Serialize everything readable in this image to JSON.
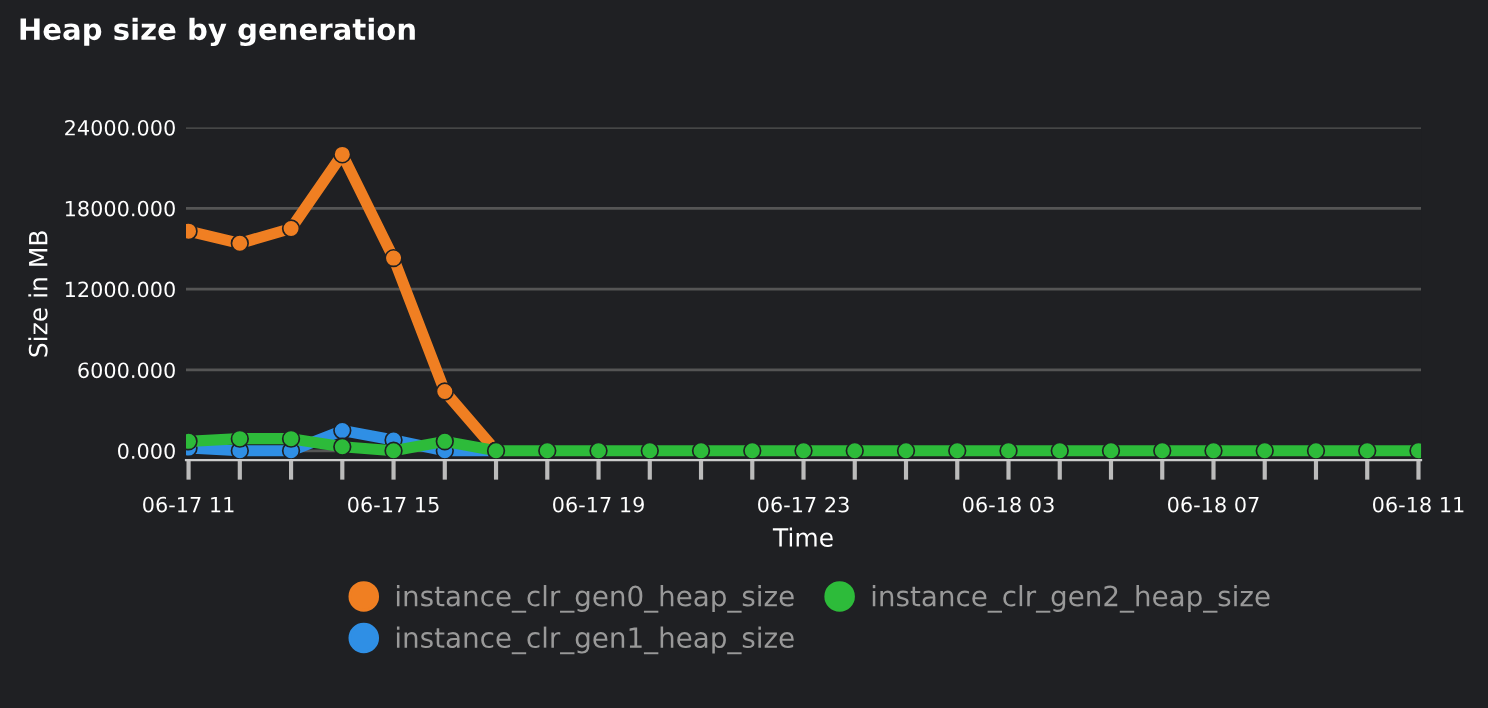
{
  "chart_data": {
    "type": "line",
    "title": "Heap size by generation",
    "xlabel": "Time",
    "ylabel": "Size in MB",
    "categories": [
      "06-17 11",
      null,
      null,
      null,
      "06-17 15",
      null,
      null,
      null,
      "06-17 19",
      null,
      null,
      null,
      "06-17 23",
      null,
      null,
      null,
      "06-18 03",
      null,
      null,
      null,
      "06-18 07",
      null,
      null,
      null,
      "06-18 11"
    ],
    "series": [
      {
        "name": "instance_clr_gen0_heap_size",
        "color": "#f07f22",
        "values": [
          16300,
          15400,
          16500,
          22000,
          14300,
          4400,
          0,
          null,
          null,
          null,
          null,
          null,
          null,
          null,
          null,
          null,
          null,
          null,
          null,
          null,
          null,
          null,
          null,
          null,
          null
        ]
      },
      {
        "name": "instance_clr_gen1_heap_size",
        "color": "#2f8fe5",
        "values": [
          200,
          0,
          0,
          1500,
          800,
          0,
          0,
          null,
          null,
          null,
          null,
          null,
          null,
          null,
          null,
          null,
          null,
          null,
          null,
          null,
          null,
          null,
          null,
          null,
          null
        ]
      },
      {
        "name": "instance_clr_gen2_heap_size",
        "color": "#2dbb3a",
        "values": [
          700,
          900,
          900,
          300,
          0,
          700,
          0,
          0,
          0,
          0,
          0,
          0,
          0,
          0,
          0,
          0,
          0,
          0,
          0,
          0,
          0,
          0,
          0,
          0,
          0
        ]
      }
    ],
    "ylim": [
      -700,
      24000
    ],
    "yticks": [
      {
        "value": 0,
        "label": "0.000"
      },
      {
        "value": 6000,
        "label": "6000.000"
      },
      {
        "value": 12000,
        "label": "12000.000"
      },
      {
        "value": 18000,
        "label": "18000.000"
      },
      {
        "value": 24000,
        "label": "24000.000"
      }
    ],
    "grid": "y",
    "legend": "bottom",
    "marker": "circle",
    "line_style": "solid"
  }
}
